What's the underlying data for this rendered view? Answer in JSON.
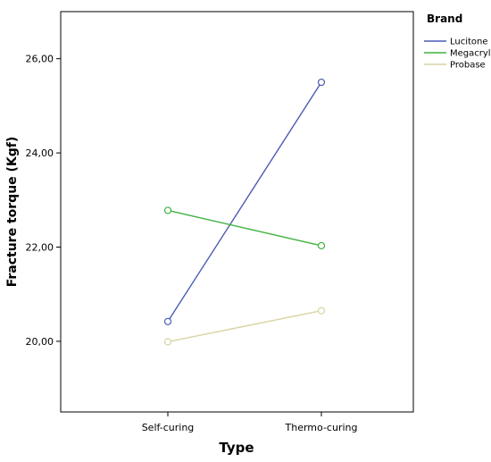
{
  "chart_data": {
    "type": "line",
    "title": "",
    "xlabel": "Type",
    "ylabel": "Fracture torque (Kgf)",
    "categories": [
      "Self-curing",
      "Thermo-curing"
    ],
    "ylim": [
      18.5,
      27
    ],
    "yticks": [
      20,
      22,
      24,
      26
    ],
    "ytick_labels": [
      "20,00",
      "22,00",
      "24,00",
      "26,00"
    ],
    "grid": false,
    "markers": "open-circle",
    "legend": {
      "title": "Brand",
      "placement": "right"
    },
    "series": [
      {
        "name": "Lucitone",
        "color": "#4a5cb3",
        "values": [
          20.42,
          25.5
        ]
      },
      {
        "name": "Megacryl",
        "color": "#3fb23f",
        "values": [
          22.78,
          22.03
        ]
      },
      {
        "name": "Probase",
        "color": "#d8d4a2",
        "values": [
          19.99,
          20.65
        ]
      }
    ]
  }
}
